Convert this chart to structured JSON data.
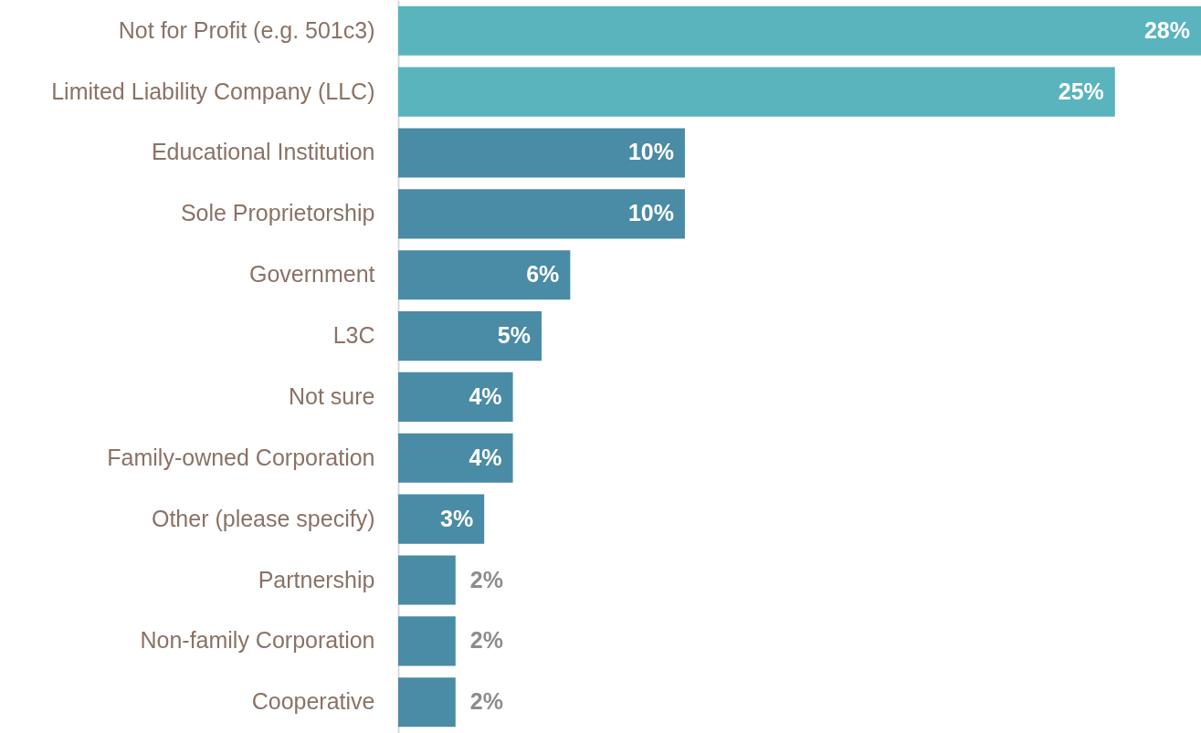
{
  "chart_data": {
    "type": "bar",
    "orientation": "horizontal",
    "categories": [
      "Not for Profit (e.g. 501c3)",
      "Limited Liability Company (LLC)",
      "Educational Institution",
      "Sole Proprietorship",
      "Government",
      "L3C",
      "Not sure",
      "Family-owned Corporation",
      "Other (please specify)",
      "Partnership",
      "Non-family Corporation",
      "Cooperative"
    ],
    "values": [
      28,
      25,
      10,
      10,
      6,
      5,
      4,
      4,
      3,
      2,
      2,
      2
    ],
    "value_labels": [
      "28%",
      "25%",
      "10%",
      "10%",
      "6%",
      "5%",
      "4%",
      "4%",
      "3%",
      "2%",
      "2%",
      "2%"
    ],
    "colors": [
      "#5ab4be",
      "#5ab4be",
      "#4a8ba5",
      "#4a8ba5",
      "#4a8ba5",
      "#4a8ba5",
      "#4a8ba5",
      "#4a8ba5",
      "#4a8ba5",
      "#4a8ba5",
      "#4a8ba5",
      "#4a8ba5"
    ],
    "grid": false
  }
}
